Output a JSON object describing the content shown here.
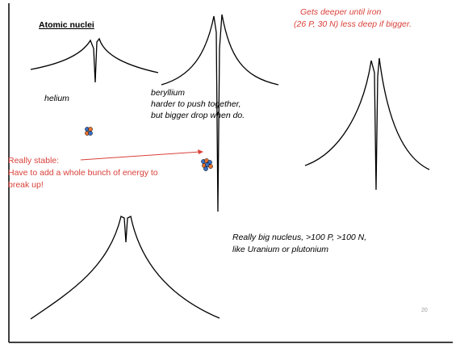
{
  "slide": {
    "title": "Atomic nuclei",
    "note_red_top": [
      "Gets deeper until iron",
      "(26 P, 30 N) less deep if bigger."
    ],
    "helium_label": "helium",
    "beryllium_label": [
      "beryllium",
      "harder to push together,",
      "but bigger drop when do."
    ],
    "stable_note": [
      "Really stable:",
      "Have to add a whole bunch of energy to",
      "break up!"
    ],
    "big_nucleus_label": [
      "Really big nucleus, >100 P, >100 N,",
      "like Uranium or plutonium"
    ],
    "page_number": "20"
  }
}
